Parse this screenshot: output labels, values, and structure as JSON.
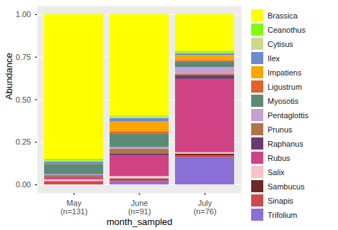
{
  "chart_data": {
    "type": "bar",
    "stacked": true,
    "grid": true,
    "legend": "right",
    "x_label": "month_sampled",
    "y_label": "Abundance",
    "categories": [
      "May\n(n=131)",
      "June\n(n=91)",
      "July\n(n=76)"
    ],
    "ylim": [
      -0.05,
      1.05
    ],
    "yticks": [
      {
        "value": 0,
        "label": "0.00"
      },
      {
        "value": 0.25,
        "label": "0.25"
      },
      {
        "value": 0.5,
        "label": "0.50"
      },
      {
        "value": 0.75,
        "label": "0.75"
      },
      {
        "value": 1,
        "label": "1.00"
      }
    ],
    "series": [
      {
        "name": "Brassica",
        "color": "#FFFF00",
        "values": [
          0.85,
          0.595,
          0.215
        ]
      },
      {
        "name": "Ceanothus",
        "color": "#7FFF00",
        "values": [
          0.01,
          0.005,
          0.01
        ]
      },
      {
        "name": "Cytisus",
        "color": "#CFD98C",
        "values": [
          0.005,
          0.01,
          0.005
        ]
      },
      {
        "name": "Ilex",
        "color": "#6A8CCF",
        "values": [
          0.01,
          0.02,
          0.01
        ]
      },
      {
        "name": "Impatiens",
        "color": "#FFA500",
        "values": [
          0,
          0.06,
          0.03
        ]
      },
      {
        "name": "Ligustrum",
        "color": "#E0622A",
        "values": [
          0.005,
          0.01,
          0.01
        ]
      },
      {
        "name": "Myosotis",
        "color": "#5B8A78",
        "values": [
          0.06,
          0.08,
          0.03
        ]
      },
      {
        "name": "Pentaglottis",
        "color": "#C89FD4",
        "values": [
          0.005,
          0.01,
          0.04
        ]
      },
      {
        "name": "Prunus",
        "color": "#B07545",
        "values": [
          0.01,
          0.03,
          0.01
        ]
      },
      {
        "name": "Raphanus",
        "color": "#6B3A6E",
        "values": [
          0.005,
          0.01,
          0.02
        ]
      },
      {
        "name": "Rubus",
        "color": "#D14284",
        "values": [
          0.01,
          0.12,
          0.43
        ]
      },
      {
        "name": "Salix",
        "color": "#FFC0CB",
        "values": [
          0.01,
          0.015,
          0.01
        ]
      },
      {
        "name": "Sambucus",
        "color": "#6B2A26",
        "values": [
          0,
          0.005,
          0.01
        ]
      },
      {
        "name": "Sinapis",
        "color": "#CC4A4E",
        "values": [
          0.02,
          0.01,
          0.01
        ]
      },
      {
        "name": "Trifolium",
        "color": "#8A6FD6",
        "values": [
          0,
          0.02,
          0.16
        ]
      }
    ]
  }
}
